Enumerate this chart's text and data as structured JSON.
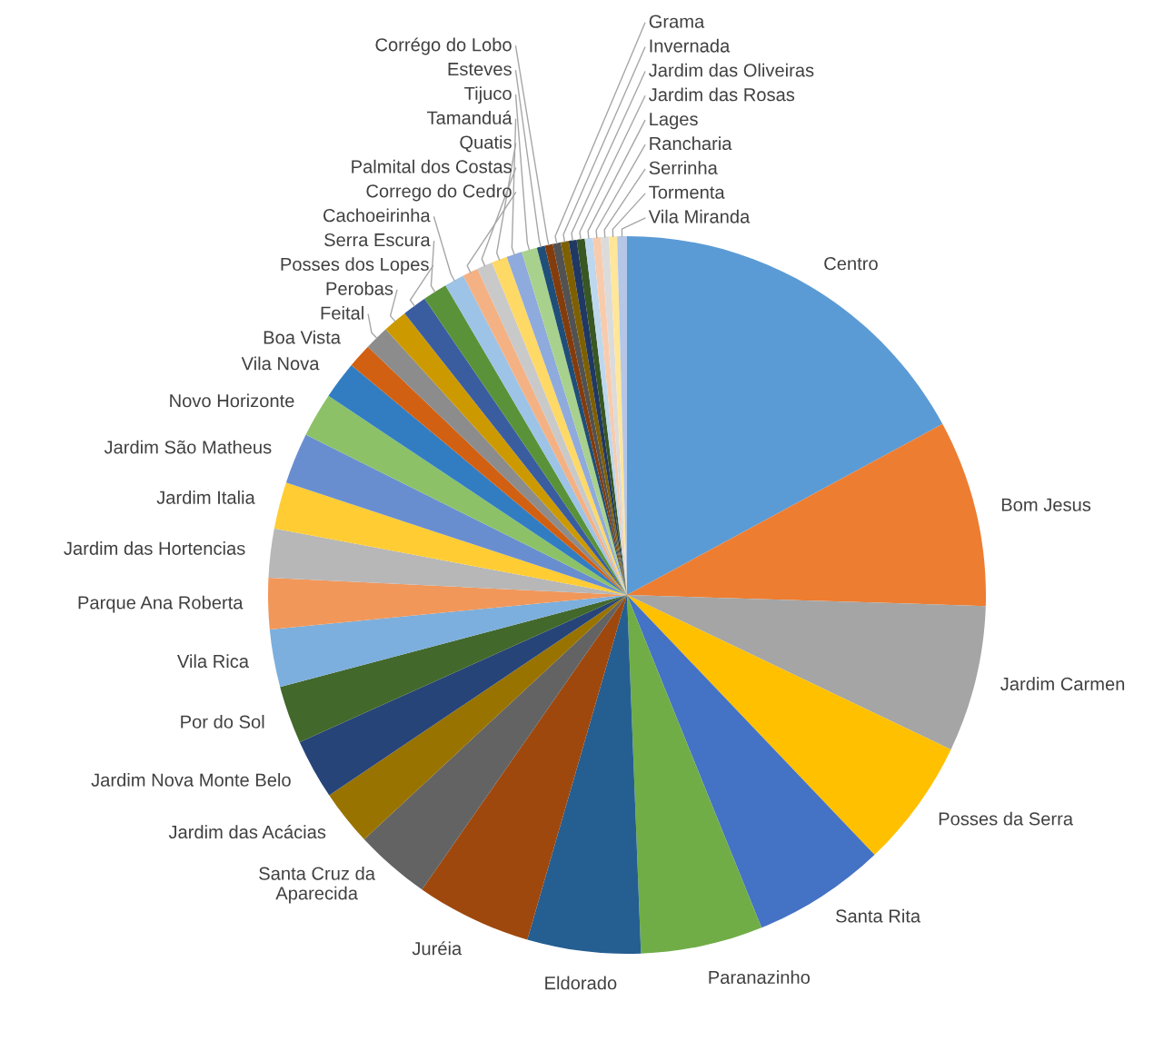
{
  "chart_data": {
    "type": "pie",
    "categories": [
      "Centro",
      "Bom Jesus",
      "Jardim Carmen",
      "Posses da Serra",
      "Santa Rita",
      "Paranazinho",
      "Eldorado",
      "Juréia",
      "Santa Cruz da\nAparecida",
      "Jardim das Acácias",
      "Jardim Nova Monte Belo",
      "Por do Sol",
      "Vila Rica",
      "Parque Ana Roberta",
      "Jardim das Hortencias",
      "Jardim Italia",
      "Jardim São Matheus",
      "Novo Horizonte",
      "Vila Nova",
      "Boa Vista",
      "Feital",
      "Perobas",
      "Posses dos Lopes",
      "Serra Escura",
      "Cachoeirinha",
      "Corrego do Cedro",
      "Palmital dos Costas",
      "Quatis",
      "Tamanduá",
      "Tijuco",
      "Esteves",
      "Corrégo do Lobo",
      "Grama",
      "Invernada",
      "Jardim das Oliveiras",
      "Jardim das Rosas",
      "Lages",
      "Rancharia",
      "Serrinha",
      "Tormenta",
      "Vila Miranda"
    ],
    "values": [
      17.1,
      8.4,
      6.6,
      5.8,
      6.0,
      5.5,
      5.1,
      5.2,
      3.4,
      2.5,
      2.7,
      2.6,
      2.6,
      2.3,
      2.2,
      2.1,
      2.3,
      2.0,
      1.7,
      1.1,
      1.1,
      1.1,
      1.1,
      1.1,
      0.9,
      0.7,
      0.7,
      0.7,
      0.7,
      0.7,
      0.36,
      0.36,
      0.36,
      0.36,
      0.36,
      0.36,
      0.36,
      0.36,
      0.36,
      0.36,
      0.44
    ],
    "colors": [
      "#5b9bd5",
      "#ed7d31",
      "#a5a5a5",
      "#ffc000",
      "#4472c4",
      "#70ad47",
      "#255e91",
      "#9e480e",
      "#636363",
      "#997300",
      "#264478",
      "#43682b",
      "#7cafdd",
      "#f1975a",
      "#b7b7b7",
      "#ffcd33",
      "#698ed0",
      "#8cc168",
      "#327dc2",
      "#d26012",
      "#8c8c8c",
      "#cc9a00",
      "#3a5da0",
      "#5a9239",
      "#9dc3e6",
      "#f4b183",
      "#c9c9c9",
      "#ffd966",
      "#8faadc",
      "#a9d18e",
      "#1f4e79",
      "#843c0c",
      "#525252",
      "#7f6000",
      "#203864",
      "#385723",
      "#bdd7ee",
      "#f8cbad",
      "#dbdbdb",
      "#ffe699",
      "#b4c7e7"
    ]
  }
}
